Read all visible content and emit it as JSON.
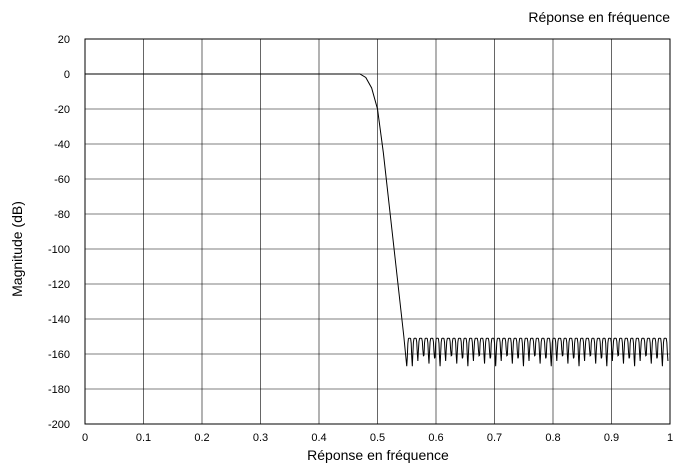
{
  "chart_data": {
    "type": "line",
    "title": "Réponse en fréquence",
    "xlabel": "Réponse en fréquence",
    "ylabel": "Magnitude (dB)",
    "xlim": [
      0,
      1
    ],
    "ylim": [
      -200,
      20
    ],
    "xticks": [
      "0",
      "0.1",
      "0.2",
      "0.3",
      "0.4",
      "0.5",
      "0.6",
      "0.7",
      "0.8",
      "0.9",
      "1"
    ],
    "yticks": [
      "20",
      "0",
      "-20",
      "-40",
      "-60",
      "-80",
      "-100",
      "-120",
      "-140",
      "-160",
      "-180",
      "-200"
    ],
    "grid": true,
    "legend": "none",
    "colors": {
      "line": "#000000",
      "grid": "#000000",
      "background": "#ffffff"
    },
    "series": [
      {
        "x": [
          0,
          0.1,
          0.2,
          0.3,
          0.4,
          0.45,
          0.47,
          0.48,
          0.49,
          0.5,
          0.51,
          0.52,
          0.53,
          0.54,
          0.545,
          0.55
        ],
        "y": [
          0,
          0,
          0,
          0,
          0,
          0,
          0,
          -2,
          -8,
          -20,
          -45,
          -75,
          -105,
          -135,
          -150,
          -167
        ],
        "stopband": {
          "x_start": 0.55,
          "x_end": 1.0,
          "ripple_period": 0.0095,
          "peak_db": -151,
          "notch_db_min": -167,
          "notch_db_max": -161
        }
      }
    ]
  }
}
